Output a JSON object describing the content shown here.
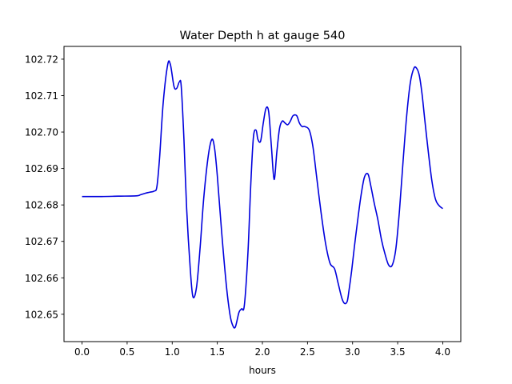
{
  "chart_data": {
    "type": "line",
    "title": "Water Depth h at gauge 540",
    "xlabel": "hours",
    "ylabel": "",
    "xlim": [
      -0.2,
      4.2
    ],
    "ylim": [
      102.6425,
      102.7235
    ],
    "grid": false,
    "legend": "none",
    "x_ticks": [
      0.0,
      0.5,
      1.0,
      1.5,
      2.0,
      2.5,
      3.0,
      3.5,
      4.0
    ],
    "x_tick_labels": [
      "0.0",
      "0.5",
      "1.0",
      "1.5",
      "2.0",
      "2.5",
      "3.0",
      "3.5",
      "4.0"
    ],
    "y_ticks": [
      102.65,
      102.66,
      102.67,
      102.68,
      102.69,
      102.7,
      102.71,
      102.72
    ],
    "y_tick_labels": [
      "102.65",
      "102.66",
      "102.67",
      "102.68",
      "102.69",
      "102.70",
      "102.71",
      "102.72"
    ],
    "series": [
      {
        "color": "#0000dd",
        "x": [
          0.0,
          0.2,
          0.4,
          0.6,
          0.65,
          0.7,
          0.75,
          0.8,
          0.83,
          0.86,
          0.9,
          0.95,
          0.98,
          1.02,
          1.05,
          1.08,
          1.1,
          1.13,
          1.16,
          1.2,
          1.23,
          1.27,
          1.31,
          1.35,
          1.4,
          1.44,
          1.47,
          1.5,
          1.55,
          1.6,
          1.64,
          1.67,
          1.7,
          1.74,
          1.77,
          1.8,
          1.84,
          1.87,
          1.9,
          1.93,
          1.95,
          1.98,
          2.01,
          2.04,
          2.07,
          2.1,
          2.13,
          2.16,
          2.19,
          2.22,
          2.25,
          2.28,
          2.31,
          2.34,
          2.38,
          2.41,
          2.44,
          2.47,
          2.52,
          2.56,
          2.6,
          2.65,
          2.7,
          2.75,
          2.8,
          2.84,
          2.88,
          2.91,
          2.94,
          2.96,
          2.99,
          3.02,
          3.05,
          3.09,
          3.13,
          3.17,
          3.2,
          3.24,
          3.28,
          3.32,
          3.36,
          3.4,
          3.44,
          3.48,
          3.52,
          3.56,
          3.6,
          3.64,
          3.68,
          3.71,
          3.74,
          3.77,
          3.8,
          3.84,
          3.88,
          3.92,
          3.96,
          4.0
        ],
        "y": [
          102.6823,
          102.6823,
          102.6824,
          102.6825,
          102.6828,
          102.6832,
          102.6835,
          102.6838,
          102.685,
          102.693,
          102.708,
          102.7185,
          102.7185,
          102.7125,
          102.712,
          102.7138,
          102.7125,
          102.698,
          102.679,
          102.6625,
          102.6548,
          102.6575,
          102.6685,
          102.682,
          102.6935,
          102.698,
          102.6955,
          102.688,
          102.672,
          102.658,
          102.65,
          102.647,
          102.6465,
          102.6505,
          102.6515,
          102.6525,
          102.667,
          102.685,
          102.6985,
          102.7005,
          102.698,
          102.6975,
          102.7025,
          102.7065,
          102.7055,
          102.696,
          102.687,
          102.6945,
          102.701,
          102.703,
          102.7025,
          102.702,
          102.703,
          102.7045,
          102.7045,
          102.7025,
          102.7015,
          102.7015,
          102.7005,
          102.696,
          102.688,
          102.678,
          102.6695,
          102.664,
          102.6625,
          102.6585,
          102.6545,
          102.653,
          102.6535,
          102.6565,
          102.662,
          102.6685,
          102.6745,
          102.682,
          102.6875,
          102.6885,
          102.6855,
          102.6805,
          102.676,
          102.6705,
          102.6665,
          102.6635,
          102.6635,
          102.668,
          102.6785,
          102.692,
          102.7045,
          102.7135,
          102.7175,
          102.7175,
          102.7155,
          102.7105,
          102.7035,
          102.6945,
          102.6865,
          102.6815,
          102.6798,
          102.679
        ]
      }
    ]
  }
}
